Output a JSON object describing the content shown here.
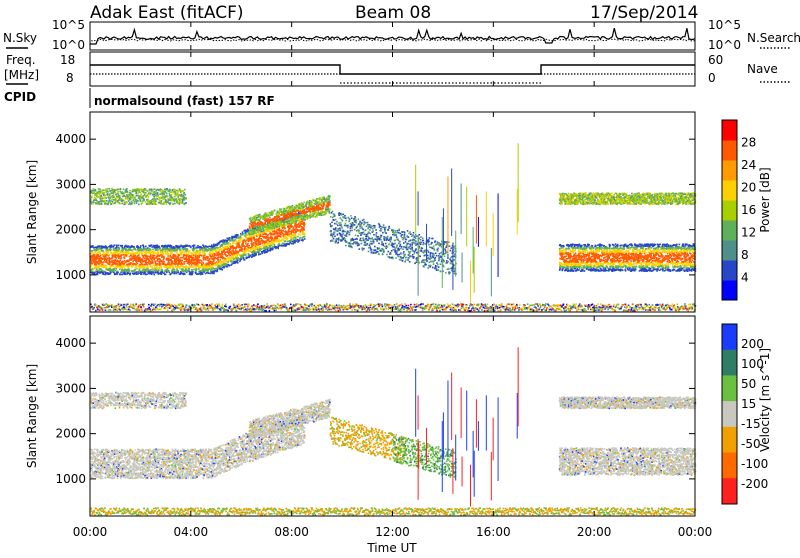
{
  "header": {
    "station": "Adak East (fitACF)",
    "beam": "Beam 08",
    "date": "17/Sep/2014"
  },
  "sky_panel": {
    "left_label": "N.Sky",
    "right_label": "N.Search",
    "left_ticks": [
      "10^5",
      "10^0"
    ],
    "right_ticks": [
      "10^5",
      "10^0"
    ]
  },
  "freq_panel": {
    "left_label_1": "Freq.",
    "left_label_2": "[MHz]",
    "right_label": "Nave",
    "left_ticks": [
      "18",
      "8"
    ],
    "right_ticks": [
      "60",
      "0"
    ]
  },
  "cpid_panel": {
    "label": "CPID",
    "text": "normalsound (fast) 157 RF"
  },
  "chart_data": [
    {
      "type": "heatmap",
      "name": "power",
      "ylabel": "Slant Range [km]",
      "yticks": [
        "1000",
        "2000",
        "3000",
        "4000"
      ],
      "ylim": [
        180,
        4600
      ],
      "colorbar_label": "Power [dB]",
      "colorbar_ticks": [
        "4",
        "8",
        "12",
        "16",
        "20",
        "24",
        "28"
      ],
      "colorbar_range": [
        0,
        32
      ],
      "colors": [
        "#0000ff",
        "#2846c8",
        "#4f8f8a",
        "#5fb05a",
        "#a8d000",
        "#ffd000",
        "#ff9a00",
        "#ff5a00",
        "#ff0000"
      ]
    },
    {
      "type": "heatmap",
      "name": "velocity",
      "ylabel": "Slant Range [km]",
      "yticks": [
        "1000",
        "2000",
        "3000",
        "4000"
      ],
      "ylim": [
        180,
        4600
      ],
      "colorbar_label": "Velocity [m s^-1]",
      "colorbar_ticks": [
        "200",
        "100",
        "50",
        "15",
        "-15",
        "-50",
        "-100",
        "-200"
      ],
      "colors": [
        "#1a3cff",
        "#2e7d64",
        "#6cc040",
        "#c8c8c0",
        "#f0a000",
        "#ff6a00",
        "#ff2020"
      ]
    }
  ],
  "xaxis": {
    "ticks": [
      "00:00",
      "04:00",
      "08:00",
      "12:00",
      "16:00",
      "20:00",
      "00:00"
    ],
    "label": "Time UT"
  }
}
